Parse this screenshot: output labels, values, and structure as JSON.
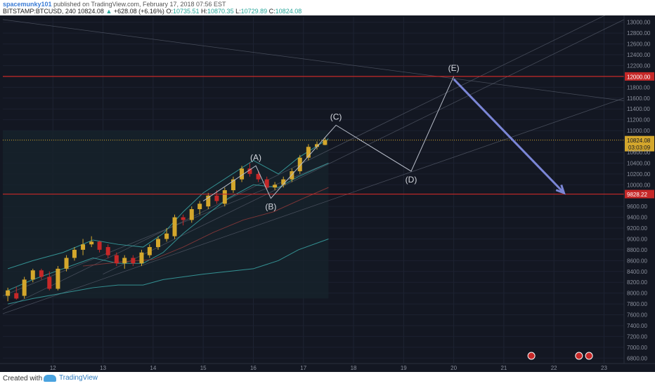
{
  "header": {
    "author": "spacemunky101",
    "published": "published on TradingView.com, February 17, 2018 07:56 EST",
    "symbol": "BITSTAMP:BTCUSD, 240",
    "last": "10824.08",
    "change_arrow": "▲",
    "change": "+628.08 (+6.16%)",
    "o_label": "O:",
    "o_value": "10735.51",
    "h_label": "H:",
    "h_value": "10870.35",
    "l_label": "L:",
    "l_value": "10729.89",
    "c_label": "C:",
    "c_value": "10824.08"
  },
  "footer": {
    "created": "Created with",
    "brand": "TradingView"
  },
  "colors": {
    "background": "#131722",
    "up": "#d4a72c",
    "down": "#c62828",
    "hline": "#c62828",
    "last_price": "#d4a72c",
    "wave": "#b7bcc8",
    "arrow": "#7b86d6",
    "band": "#3aa6a6"
  },
  "chart_data": {
    "type": "candlestick",
    "x_ticks": [
      "12",
      "13",
      "14",
      "15",
      "16",
      "17",
      "18",
      "19",
      "20",
      "21",
      "22",
      "23"
    ],
    "x_tick_pos": [
      12,
      13,
      14,
      15,
      16,
      17,
      18,
      19,
      20,
      21,
      22,
      23
    ],
    "ylim": [
      6700,
      13100
    ],
    "y_ticks": [
      "13000.00",
      "12800.00",
      "12600.00",
      "12400.00",
      "12200.00",
      "11800.00",
      "11600.00",
      "11400.00",
      "11200.00",
      "11000.00",
      "10600.00",
      "10400.00",
      "10200.00",
      "10000.00",
      "9600.00",
      "9400.00",
      "9200.00",
      "9000.00",
      "8800.00",
      "8600.00",
      "8400.00",
      "8200.00",
      "8000.00",
      "7800.00",
      "7600.00",
      "7400.00",
      "7200.00",
      "7000.00",
      "6800.00"
    ],
    "candles": [
      {
        "t": 11.1,
        "o": 7950,
        "h": 8100,
        "l": 7850,
        "c": 8050
      },
      {
        "t": 11.27,
        "o": 8000,
        "h": 8120,
        "l": 7880,
        "c": 7900
      },
      {
        "t": 11.43,
        "o": 7950,
        "h": 8300,
        "l": 7900,
        "c": 8250
      },
      {
        "t": 11.6,
        "o": 8250,
        "h": 8450,
        "l": 8200,
        "c": 8420
      },
      {
        "t": 11.77,
        "o": 8420,
        "h": 8450,
        "l": 8250,
        "c": 8300
      },
      {
        "t": 11.93,
        "o": 8300,
        "h": 8400,
        "l": 8050,
        "c": 8080
      },
      {
        "t": 12.1,
        "o": 8080,
        "h": 8500,
        "l": 8050,
        "c": 8450
      },
      {
        "t": 12.27,
        "o": 8450,
        "h": 8700,
        "l": 8400,
        "c": 8650
      },
      {
        "t": 12.43,
        "o": 8650,
        "h": 8850,
        "l": 8600,
        "c": 8800
      },
      {
        "t": 12.6,
        "o": 8800,
        "h": 9000,
        "l": 8700,
        "c": 8900
      },
      {
        "t": 12.77,
        "o": 8900,
        "h": 9050,
        "l": 8850,
        "c": 8950
      },
      {
        "t": 12.93,
        "o": 8950,
        "h": 8970,
        "l": 8750,
        "c": 8800
      },
      {
        "t": 13.1,
        "o": 8850,
        "h": 8900,
        "l": 8650,
        "c": 8700
      },
      {
        "t": 13.27,
        "o": 8700,
        "h": 8750,
        "l": 8500,
        "c": 8550
      },
      {
        "t": 13.43,
        "o": 8550,
        "h": 8700,
        "l": 8450,
        "c": 8650
      },
      {
        "t": 13.6,
        "o": 8650,
        "h": 8700,
        "l": 8500,
        "c": 8550
      },
      {
        "t": 13.77,
        "o": 8550,
        "h": 8800,
        "l": 8500,
        "c": 8750
      },
      {
        "t": 13.93,
        "o": 8700,
        "h": 8900,
        "l": 8650,
        "c": 8850
      },
      {
        "t": 14.1,
        "o": 8850,
        "h": 9050,
        "l": 8800,
        "c": 9000
      },
      {
        "t": 14.27,
        "o": 9000,
        "h": 9200,
        "l": 8950,
        "c": 9100
      },
      {
        "t": 14.43,
        "o": 9050,
        "h": 9450,
        "l": 9000,
        "c": 9400
      },
      {
        "t": 14.6,
        "o": 9400,
        "h": 9450,
        "l": 9250,
        "c": 9350
      },
      {
        "t": 14.77,
        "o": 9350,
        "h": 9600,
        "l": 9300,
        "c": 9550
      },
      {
        "t": 14.93,
        "o": 9550,
        "h": 9700,
        "l": 9450,
        "c": 9650
      },
      {
        "t": 15.1,
        "o": 9600,
        "h": 9850,
        "l": 9550,
        "c": 9800
      },
      {
        "t": 15.27,
        "o": 9800,
        "h": 9900,
        "l": 9650,
        "c": 9700
      },
      {
        "t": 15.43,
        "o": 9650,
        "h": 9950,
        "l": 9600,
        "c": 9900
      },
      {
        "t": 15.6,
        "o": 9900,
        "h": 10150,
        "l": 9850,
        "c": 10100
      },
      {
        "t": 15.77,
        "o": 10100,
        "h": 10350,
        "l": 10050,
        "c": 10300
      },
      {
        "t": 15.93,
        "o": 10300,
        "h": 10400,
        "l": 10150,
        "c": 10200
      },
      {
        "t": 16.1,
        "o": 10200,
        "h": 10250,
        "l": 10050,
        "c": 10100
      },
      {
        "t": 16.27,
        "o": 10100,
        "h": 10150,
        "l": 9900,
        "c": 9950
      },
      {
        "t": 16.43,
        "o": 9950,
        "h": 10050,
        "l": 9900,
        "c": 10000
      },
      {
        "t": 16.6,
        "o": 10000,
        "h": 10150,
        "l": 9950,
        "c": 10100
      },
      {
        "t": 16.77,
        "o": 10100,
        "h": 10300,
        "l": 10050,
        "c": 10250
      },
      {
        "t": 16.93,
        "o": 10250,
        "h": 10550,
        "l": 10200,
        "c": 10500
      },
      {
        "t": 17.1,
        "o": 10500,
        "h": 10750,
        "l": 10450,
        "c": 10700
      },
      {
        "t": 17.27,
        "o": 10700,
        "h": 10800,
        "l": 10650,
        "c": 10750
      },
      {
        "t": 17.43,
        "o": 10735.51,
        "h": 10870.35,
        "l": 10729.89,
        "c": 10824.08
      }
    ],
    "hlines": [
      {
        "price": 12000,
        "label": "12000.00"
      },
      {
        "price": 9828.22,
        "label": "9828.22"
      }
    ],
    "last_price": {
      "price": 10824.08,
      "label": "10824.08",
      "countdown": "03:03:09"
    },
    "waves": [
      {
        "label": "(A)",
        "t": 16.05,
        "p": 10350
      },
      {
        "label": "(B)",
        "t": 16.35,
        "p": 9750
      },
      {
        "label": "(C)",
        "t": 17.65,
        "p": 11100
      },
      {
        "label": "(D)",
        "t": 19.15,
        "p": 10250
      },
      {
        "label": "(E)",
        "t": 20.0,
        "p": 12000
      }
    ],
    "arrow": {
      "from_t": 20.0,
      "from_p": 11950,
      "to_t": 22.2,
      "to_p": 9850
    }
  }
}
